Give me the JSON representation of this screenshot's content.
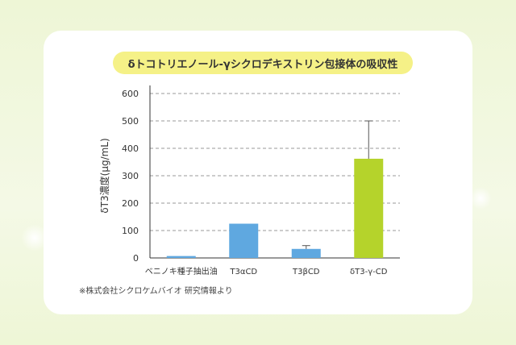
{
  "chart_data": {
    "type": "bar",
    "title": "δトコトリエノール-γシクロデキストリン包接体の吸収性",
    "ylabel": "δT3濃度(μg/mL)",
    "xlabel": "",
    "categories": [
      "ベニノキ種子抽出油",
      "T3αCD",
      "T3βCD",
      "δT3-γ-CD"
    ],
    "values": [
      7,
      125,
      33,
      362
    ],
    "error": [
      null,
      null,
      12,
      138
    ],
    "ylim": [
      0,
      600
    ],
    "yticks": [
      0,
      100,
      200,
      300,
      400,
      500,
      600
    ],
    "grid": true,
    "colors": {
      "default": "#5fa8e0",
      "highlight": "#b5d32b",
      "grid": "#9a9a9a",
      "axis": "#333333"
    },
    "highlight_index": 3
  },
  "footnote": "※株式会社シクロケムバイオ 研究情報より"
}
